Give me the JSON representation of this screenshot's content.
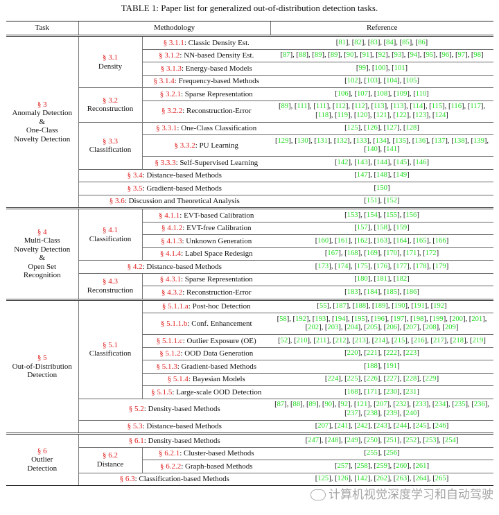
{
  "caption": "TABLE 1: Paper list for generalized out-of-distribution detection tasks.",
  "headers": {
    "task": "Task",
    "methodology": "Methodology",
    "reference": "Reference"
  },
  "colors": {
    "section": "#e02020",
    "reference_link": "#22dd22"
  },
  "watermark": "计算机视觉深度学习和自动驾驶",
  "tasks": [
    {
      "sec": "§ 3",
      "name": [
        "Anomaly Detection",
        "&",
        "One-Class",
        "Novelty Detection"
      ],
      "groups": [
        {
          "sec": "§ 3.1",
          "name": "Density",
          "items": [
            {
              "sec": "§ 3.1.1",
              "label": "Classic Density Est.",
              "refs": [
                81,
                82,
                83,
                84,
                85,
                86
              ]
            },
            {
              "sec": "§ 3.1.2",
              "label": "NN-based Density Est.",
              "refs": [
                87,
                88,
                89,
                89,
                90,
                91,
                92,
                93,
                94,
                95,
                96,
                97,
                98
              ]
            },
            {
              "sec": "§ 3.1.3",
              "label": "Energy-based Models",
              "refs": [
                99,
                100,
                101
              ]
            },
            {
              "sec": "§ 3.1.4",
              "label": "Frequency-based Methods",
              "refs": [
                102,
                103,
                104,
                105
              ]
            }
          ]
        },
        {
          "sec": "§ 3.2",
          "name": "Reconstruction",
          "items": [
            {
              "sec": "§ 3.2.1",
              "label": "Sparse Representation",
              "refs": [
                106,
                107,
                108,
                109,
                110
              ]
            },
            {
              "sec": "§ 3.2.2",
              "label": "Reconstruction-Error",
              "refs": [
                89,
                111,
                111,
                112,
                112,
                113,
                113,
                114,
                115,
                116,
                117,
                118,
                119,
                120,
                121,
                122,
                123,
                124
              ]
            }
          ]
        },
        {
          "sec": "§ 3.3",
          "name": "Classification",
          "items": [
            {
              "sec": "§ 3.3.1",
              "label": "One-Class Classification",
              "refs": [
                125,
                126,
                127,
                128
              ]
            },
            {
              "sec": "§ 3.3.2",
              "label": "PU Learning",
              "refs": [
                129,
                130,
                131,
                132,
                133,
                134,
                135,
                136,
                137,
                138,
                139,
                140,
                141
              ]
            },
            {
              "sec": "§ 3.3.3",
              "label": "Self-Supervised Learning",
              "refs": [
                142,
                143,
                144,
                145,
                146
              ]
            }
          ]
        },
        {
          "sec": "§ 3.4",
          "label": "Distance-based Methods",
          "refs": [
            147,
            148,
            149
          ]
        },
        {
          "sec": "§ 3.5",
          "label": "Gradient-based Methods",
          "refs": [
            150
          ]
        },
        {
          "sec": "§ 3.6",
          "label": "Discussion and Theoretical Analysis",
          "refs": [
            151,
            152
          ]
        }
      ]
    },
    {
      "sec": "§ 4",
      "name": [
        "Multi-Class",
        "Novelty Detection",
        "&",
        "Open Set",
        "Recognition"
      ],
      "groups": [
        {
          "sec": "§ 4.1",
          "name": "Classification",
          "items": [
            {
              "sec": "§ 4.1.1",
              "label": "EVT-based Calibration",
              "refs": [
                153,
                154,
                155,
                156
              ]
            },
            {
              "sec": "§ 4.1.2",
              "label": "EVT-free Calibration",
              "refs": [
                157,
                158,
                159
              ]
            },
            {
              "sec": "§ 4.1.3",
              "label": "Unknown Generation",
              "refs": [
                160,
                161,
                162,
                163,
                164,
                165,
                166
              ]
            },
            {
              "sec": "§ 4.1.4",
              "label": "Label Space Redesign",
              "refs": [
                167,
                168,
                169,
                170,
                171,
                172
              ]
            }
          ]
        },
        {
          "sec": "§ 4.2",
          "label": "Distance-based Methods",
          "refs": [
            173,
            174,
            175,
            176,
            177,
            178,
            179
          ]
        },
        {
          "sec": "§ 4.3",
          "name": "Reconstruction",
          "items": [
            {
              "sec": "§ 4.3.1",
              "label": "Sparse Representation",
              "refs": [
                180,
                181,
                182
              ]
            },
            {
              "sec": "§ 4.3.2",
              "label": "Reconstruction-Error",
              "refs": [
                183,
                184,
                185,
                186
              ]
            }
          ]
        }
      ]
    },
    {
      "sec": "§ 5",
      "name": [
        "Out-of-Distribution",
        "Detection"
      ],
      "groups": [
        {
          "sec": "§ 5.1",
          "name": "Classification",
          "items": [
            {
              "sec": "§ 5.1.1.a",
              "label": "Post-hoc Detection",
              "refs": [
                55,
                187,
                188,
                189,
                190,
                191,
                192
              ]
            },
            {
              "sec": "§ 5.1.1.b",
              "label": "Conf. Enhancement",
              "refs": [
                58,
                192,
                193,
                194,
                195,
                196,
                197,
                198,
                199,
                200,
                201,
                202,
                203,
                204,
                205,
                206,
                207,
                208,
                209
              ]
            },
            {
              "sec": "§ 5.1.1.c",
              "label": "Outlier Exposure (OE)",
              "refs": [
                52,
                210,
                211,
                212,
                213,
                214,
                215,
                216,
                217,
                218,
                219
              ]
            },
            {
              "sec": "§ 5.1.2",
              "label": "OOD Data Generation",
              "refs": [
                220,
                221,
                222,
                223
              ]
            },
            {
              "sec": "§ 5.1.3",
              "label": "Gradient-based Methods",
              "refs": [
                188,
                191
              ]
            },
            {
              "sec": "§ 5.1.4",
              "label": "Bayesian Models",
              "refs": [
                224,
                225,
                226,
                227,
                228,
                229
              ]
            },
            {
              "sec": "§ 5.1.5",
              "label": "Large-scale OOD Detection",
              "refs": [
                168,
                171,
                230,
                231
              ]
            }
          ]
        },
        {
          "sec": "§ 5.2",
          "label": "Density-based Methods",
          "refs": [
            87,
            88,
            89,
            90,
            92,
            121,
            207,
            232,
            233,
            234,
            235,
            236,
            237,
            238,
            239,
            240
          ]
        },
        {
          "sec": "§ 5.3",
          "label": "Distance-based Methods",
          "refs": [
            207,
            241,
            242,
            243,
            244,
            245,
            246
          ]
        }
      ]
    },
    {
      "sec": "§ 6",
      "name": [
        "Outlier",
        "Detection"
      ],
      "groups": [
        {
          "sec": "§ 6.1",
          "label": "Density-based Methods",
          "refs": [
            247,
            248,
            249,
            250,
            251,
            252,
            253,
            254
          ]
        },
        {
          "sec": "§ 6.2",
          "name": "Distance",
          "items": [
            {
              "sec": "§ 6.2.1",
              "label": "Cluster-based Methods",
              "refs": [
                255,
                256
              ]
            },
            {
              "sec": "§ 6.2.2",
              "label": "Graph-based Methods",
              "refs": [
                257,
                258,
                259,
                260,
                261
              ]
            }
          ]
        },
        {
          "sec": "§ 6.3",
          "label": "Classification-based Methods",
          "refs": [
            125,
            126,
            142,
            262,
            263,
            264,
            265
          ]
        }
      ]
    }
  ]
}
